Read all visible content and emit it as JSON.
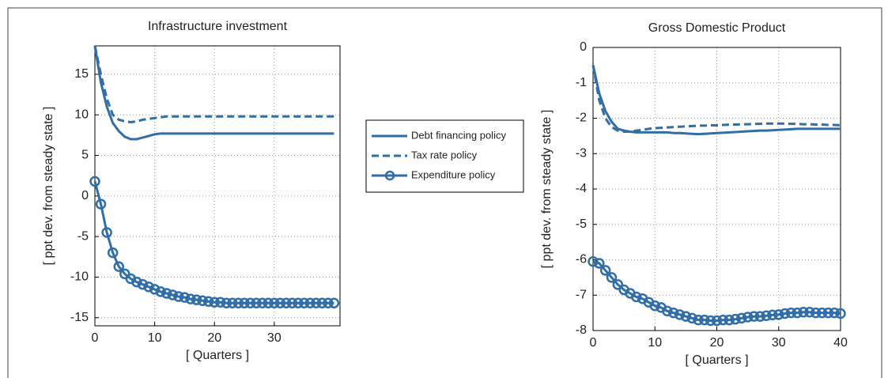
{
  "chart_data": [
    {
      "type": "line",
      "title": "Infrastructure investment",
      "xlabel": "[ Quarters ]",
      "ylabel": "[ ppt dev. from steady state ]",
      "x": [
        0,
        1,
        2,
        3,
        4,
        5,
        6,
        7,
        8,
        9,
        10,
        11,
        12,
        13,
        14,
        15,
        16,
        17,
        18,
        19,
        20,
        21,
        22,
        23,
        24,
        25,
        26,
        27,
        28,
        29,
        30,
        31,
        32,
        33,
        34,
        35,
        36,
        37,
        38,
        39,
        40
      ],
      "xlim": [
        0,
        41
      ],
      "xticks": [
        0,
        10,
        20,
        30
      ],
      "ylim": [
        -16,
        18.5
      ],
      "yticks": [
        -15,
        -10,
        -5,
        0,
        5,
        10,
        15
      ],
      "grid": true,
      "series": [
        {
          "name": "Debt financing policy",
          "color": "#2f6dab",
          "style": "solid",
          "values": [
            18.5,
            14,
            11,
            9,
            8,
            7.3,
            7.0,
            7.0,
            7.2,
            7.4,
            7.6,
            7.7,
            7.7,
            7.7,
            7.7,
            7.7,
            7.7,
            7.7,
            7.7,
            7.7,
            7.7,
            7.7,
            7.7,
            7.7,
            7.7,
            7.7,
            7.7,
            7.7,
            7.7,
            7.7,
            7.7,
            7.7,
            7.7,
            7.7,
            7.7,
            7.7,
            7.7,
            7.7,
            7.7,
            7.7,
            7.7
          ]
        },
        {
          "name": "Tax rate policy",
          "color": "#2f6dab",
          "style": "dashed",
          "values": [
            18.5,
            15,
            12,
            10,
            9.4,
            9.2,
            9.1,
            9.2,
            9.4,
            9.5,
            9.6,
            9.7,
            9.8,
            9.8,
            9.8,
            9.8,
            9.8,
            9.8,
            9.8,
            9.8,
            9.8,
            9.8,
            9.8,
            9.8,
            9.8,
            9.8,
            9.8,
            9.8,
            9.8,
            9.8,
            9.8,
            9.8,
            9.8,
            9.8,
            9.8,
            9.8,
            9.8,
            9.8,
            9.8,
            9.8,
            9.8
          ]
        },
        {
          "name": "Expenditure policy",
          "color": "#2f6dab",
          "style": "marker",
          "values": [
            1.8,
            -1,
            -4.5,
            -7,
            -8.7,
            -9.6,
            -10.2,
            -10.6,
            -10.9,
            -11.2,
            -11.5,
            -11.8,
            -12.0,
            -12.2,
            -12.4,
            -12.5,
            -12.7,
            -12.8,
            -12.9,
            -13.0,
            -13.1,
            -13.1,
            -13.2,
            -13.2,
            -13.2,
            -13.2,
            -13.2,
            -13.2,
            -13.2,
            -13.2,
            -13.2,
            -13.2,
            -13.2,
            -13.2,
            -13.2,
            -13.2,
            -13.2,
            -13.2,
            -13.2,
            -13.2,
            -13.2
          ]
        }
      ]
    },
    {
      "type": "line",
      "title": "Gross Domestic Product",
      "xlabel": "[ Quarters ]",
      "ylabel": "[ ppt dev. from steady state ]",
      "x": [
        0,
        1,
        2,
        3,
        4,
        5,
        6,
        7,
        8,
        9,
        10,
        11,
        12,
        13,
        14,
        15,
        16,
        17,
        18,
        19,
        20,
        21,
        22,
        23,
        24,
        25,
        26,
        27,
        28,
        29,
        30,
        31,
        32,
        33,
        34,
        35,
        36,
        37,
        38,
        39,
        40
      ],
      "xlim": [
        0,
        40
      ],
      "xticks": [
        0,
        10,
        20,
        30,
        40
      ],
      "ylim": [
        -8,
        0
      ],
      "yticks": [
        -8,
        -7,
        -6,
        -5,
        -4,
        -3,
        -2,
        -1,
        0
      ],
      "grid": true,
      "series": [
        {
          "color": "#2f6dab",
          "style": "solid",
          "values": [
            -0.5,
            -1.3,
            -1.8,
            -2.1,
            -2.3,
            -2.35,
            -2.38,
            -2.4,
            -2.4,
            -2.4,
            -2.4,
            -2.4,
            -2.4,
            -2.42,
            -2.42,
            -2.43,
            -2.44,
            -2.45,
            -2.44,
            -2.43,
            -2.42,
            -2.41,
            -2.4,
            -2.39,
            -2.38,
            -2.37,
            -2.36,
            -2.35,
            -2.35,
            -2.34,
            -2.33,
            -2.32,
            -2.31,
            -2.3,
            -2.3,
            -2.3,
            -2.3,
            -2.3,
            -2.3,
            -2.3,
            -2.3
          ]
        },
        {
          "color": "#2f6dab",
          "style": "dashed",
          "values": [
            -0.5,
            -1.5,
            -2.0,
            -2.25,
            -2.35,
            -2.38,
            -2.38,
            -2.35,
            -2.33,
            -2.3,
            -2.28,
            -2.27,
            -2.26,
            -2.25,
            -2.24,
            -2.23,
            -2.22,
            -2.21,
            -2.21,
            -2.2,
            -2.2,
            -2.19,
            -2.18,
            -2.18,
            -2.17,
            -2.17,
            -2.16,
            -2.16,
            -2.15,
            -2.15,
            -2.15,
            -2.15,
            -2.16,
            -2.16,
            -2.17,
            -2.17,
            -2.18,
            -2.18,
            -2.19,
            -2.19,
            -2.2
          ]
        },
        {
          "color": "#2f6dab",
          "style": "marker",
          "values": [
            -6.05,
            -6.1,
            -6.3,
            -6.5,
            -6.7,
            -6.85,
            -6.95,
            -7.05,
            -7.1,
            -7.2,
            -7.3,
            -7.35,
            -7.45,
            -7.5,
            -7.55,
            -7.6,
            -7.65,
            -7.7,
            -7.7,
            -7.72,
            -7.72,
            -7.7,
            -7.7,
            -7.68,
            -7.65,
            -7.62,
            -7.6,
            -7.6,
            -7.58,
            -7.56,
            -7.55,
            -7.52,
            -7.5,
            -7.5,
            -7.48,
            -7.48,
            -7.5,
            -7.5,
            -7.5,
            -7.5,
            -7.52
          ]
        }
      ]
    }
  ]
}
